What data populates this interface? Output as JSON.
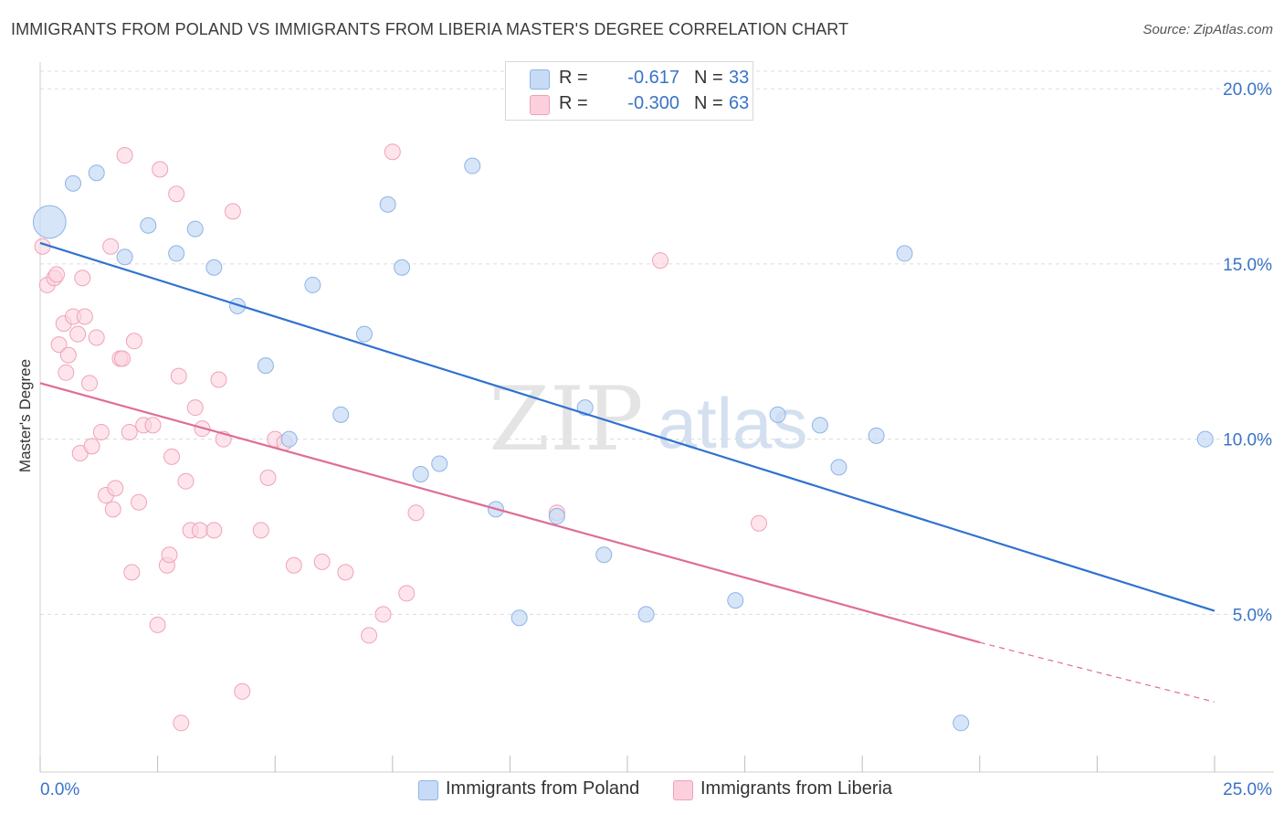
{
  "title": "IMMIGRANTS FROM POLAND VS IMMIGRANTS FROM LIBERIA MASTER'S DEGREE CORRELATION CHART",
  "source": "Source: ZipAtlas.com",
  "watermark": {
    "zip": "ZIP",
    "atlas": "atlas"
  },
  "legend": {
    "rows": [
      {
        "r_label": "R =",
        "r_value": "-0.617",
        "n_label": "N =",
        "n_value": "33",
        "color": "#a9c8f0"
      },
      {
        "r_label": "R =",
        "r_value": "-0.300",
        "n_label": "N =",
        "n_value": "63",
        "color": "#f7b6c8"
      }
    ]
  },
  "bottom_legend": [
    {
      "label": "Immigrants from Poland",
      "color": "#a9c8f0"
    },
    {
      "label": "Immigrants from Liberia",
      "color": "#f7b6c8"
    }
  ],
  "chart_data": {
    "type": "scatter",
    "xlabel": "",
    "ylabel": "Master's Degree",
    "xlim": [
      0,
      25
    ],
    "ylim": [
      0.5,
      20.5
    ],
    "x_tick_labels": [
      "0.0%",
      "25.0%"
    ],
    "y_ticks": [
      5,
      10,
      15,
      20
    ],
    "y_tick_labels": [
      "5.0%",
      "10.0%",
      "15.0%",
      "20.0%"
    ],
    "grid": true,
    "colors": {
      "poland_fill": "#a9c8f0",
      "poland_line": "#2f72d0",
      "liberia_fill": "#f7b6c8",
      "liberia_line": "#e06c96",
      "tick_text": "#3a73c8"
    },
    "series": [
      {
        "name": "Immigrants from Poland",
        "points": [
          [
            0.2,
            16.2,
            3
          ],
          [
            0.7,
            17.3,
            1
          ],
          [
            1.2,
            17.6,
            1
          ],
          [
            1.8,
            15.2,
            1
          ],
          [
            2.3,
            16.1,
            1
          ],
          [
            2.9,
            15.3,
            1
          ],
          [
            3.3,
            16.0,
            1
          ],
          [
            3.7,
            14.9,
            1
          ],
          [
            4.2,
            13.8,
            1
          ],
          [
            4.8,
            12.1,
            1
          ],
          [
            5.3,
            10.0,
            1
          ],
          [
            5.8,
            14.4,
            1
          ],
          [
            6.4,
            10.7,
            1
          ],
          [
            6.9,
            13.0,
            1
          ],
          [
            7.4,
            16.7,
            1
          ],
          [
            7.7,
            14.9,
            1
          ],
          [
            8.1,
            9.0,
            1
          ],
          [
            8.5,
            9.3,
            1
          ],
          [
            9.2,
            17.8,
            1
          ],
          [
            9.7,
            8.0,
            1
          ],
          [
            10.2,
            4.9,
            1
          ],
          [
            11.0,
            7.8,
            1
          ],
          [
            11.6,
            10.9,
            1
          ],
          [
            12.0,
            6.7,
            1
          ],
          [
            12.9,
            5.0,
            1
          ],
          [
            14.8,
            5.4,
            1
          ],
          [
            15.7,
            10.7,
            1
          ],
          [
            16.6,
            10.4,
            1
          ],
          [
            17.0,
            9.2,
            1
          ],
          [
            17.8,
            10.1,
            1
          ],
          [
            18.4,
            15.3,
            1
          ],
          [
            19.6,
            1.9,
            1
          ],
          [
            24.8,
            10.0,
            1
          ]
        ],
        "trend": {
          "x": [
            0,
            25
          ],
          "y": [
            15.6,
            5.1
          ]
        }
      },
      {
        "name": "Immigrants from Liberia",
        "points": [
          [
            0.05,
            15.5,
            1
          ],
          [
            0.15,
            14.4,
            1
          ],
          [
            0.3,
            14.6,
            1
          ],
          [
            0.35,
            14.7,
            1
          ],
          [
            0.4,
            12.7,
            1
          ],
          [
            0.5,
            13.3,
            1
          ],
          [
            0.55,
            11.9,
            1
          ],
          [
            0.6,
            12.4,
            1
          ],
          [
            0.7,
            13.5,
            1
          ],
          [
            0.8,
            13.0,
            1
          ],
          [
            0.85,
            9.6,
            1
          ],
          [
            0.9,
            14.6,
            1
          ],
          [
            0.95,
            13.5,
            1
          ],
          [
            1.05,
            11.6,
            1
          ],
          [
            1.1,
            9.8,
            1
          ],
          [
            1.2,
            12.9,
            1
          ],
          [
            1.3,
            10.2,
            1
          ],
          [
            1.4,
            8.4,
            1
          ],
          [
            1.5,
            15.5,
            1
          ],
          [
            1.55,
            8.0,
            1
          ],
          [
            1.6,
            8.6,
            1
          ],
          [
            1.7,
            12.3,
            1
          ],
          [
            1.75,
            12.3,
            1
          ],
          [
            1.8,
            18.1,
            1
          ],
          [
            1.9,
            10.2,
            1
          ],
          [
            1.95,
            6.2,
            1
          ],
          [
            2.0,
            12.8,
            1
          ],
          [
            2.1,
            8.2,
            1
          ],
          [
            2.2,
            10.4,
            1
          ],
          [
            2.4,
            10.4,
            1
          ],
          [
            2.5,
            4.7,
            1
          ],
          [
            2.55,
            17.7,
            1
          ],
          [
            2.7,
            6.4,
            1
          ],
          [
            2.75,
            6.7,
            1
          ],
          [
            2.8,
            9.5,
            1
          ],
          [
            2.9,
            17.0,
            1
          ],
          [
            2.95,
            11.8,
            1
          ],
          [
            3.0,
            1.9,
            1
          ],
          [
            3.1,
            8.8,
            1
          ],
          [
            3.2,
            7.4,
            1
          ],
          [
            3.3,
            10.9,
            1
          ],
          [
            3.4,
            7.4,
            1
          ],
          [
            3.45,
            10.3,
            1
          ],
          [
            3.7,
            7.4,
            1
          ],
          [
            3.8,
            11.7,
            1
          ],
          [
            3.9,
            10.0,
            1
          ],
          [
            4.1,
            16.5,
            1
          ],
          [
            4.3,
            2.8,
            1
          ],
          [
            4.7,
            7.4,
            1
          ],
          [
            4.85,
            8.9,
            1
          ],
          [
            5.0,
            10.0,
            1
          ],
          [
            5.2,
            9.9,
            1
          ],
          [
            5.4,
            6.4,
            1
          ],
          [
            6.0,
            6.5,
            1
          ],
          [
            6.5,
            6.2,
            1
          ],
          [
            7.0,
            4.4,
            1
          ],
          [
            7.3,
            5.0,
            1
          ],
          [
            7.5,
            18.2,
            1
          ],
          [
            7.8,
            5.6,
            1
          ],
          [
            8.0,
            7.9,
            1
          ],
          [
            11.0,
            7.9,
            1
          ],
          [
            13.2,
            15.1,
            1
          ],
          [
            15.3,
            7.6,
            1
          ]
        ],
        "trend": {
          "x": [
            0,
            20
          ],
          "y": [
            11.6,
            4.2
          ],
          "dashed_to": {
            "x": 25,
            "y": 2.5
          }
        }
      }
    ]
  }
}
